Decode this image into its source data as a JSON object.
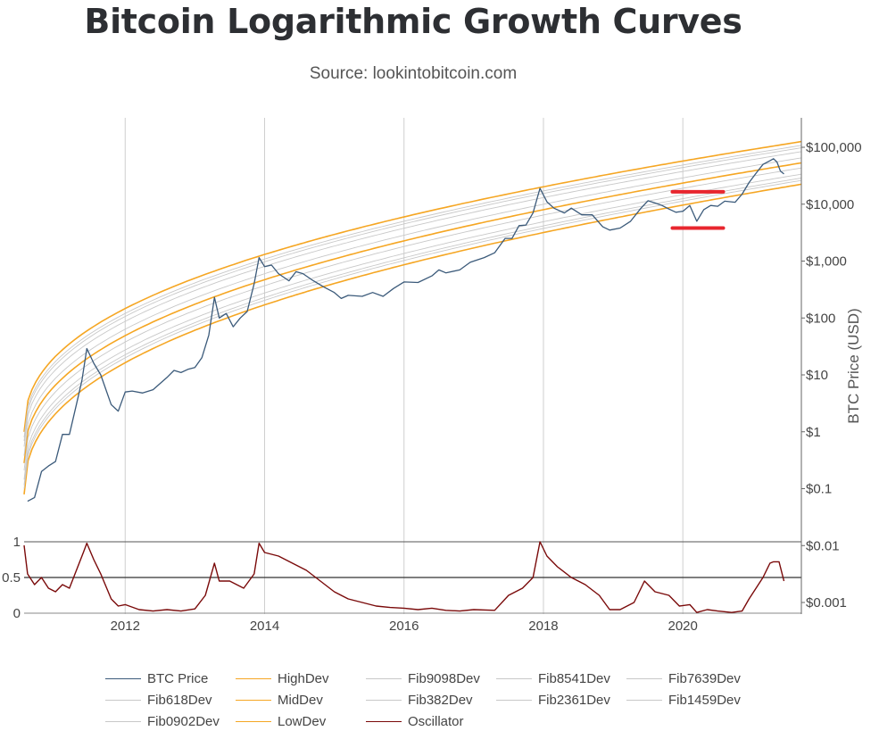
{
  "title": "Bitcoin Logarithmic Growth Curves",
  "subtitle": "Source: lookintobitcoin.com",
  "colors": {
    "btc": "#3b5a7a",
    "band": "#f5a623",
    "fib": "#c8c8c8",
    "oscillator": "#7a0a0a",
    "highlight": "#e8262e",
    "grid": "#cfcfcf"
  },
  "chart_data": {
    "type": "line",
    "title": "Bitcoin Logarithmic Growth Curves",
    "ylabel": "BTC Price (USD)",
    "yscale": "log",
    "ylim": [
      0.001,
      200000
    ],
    "xlim": [
      2010.55,
      2021.7
    ],
    "x_ticks": [
      {
        "value": 2012,
        "label": "2012"
      },
      {
        "value": 2014,
        "label": "2014"
      },
      {
        "value": 2016,
        "label": "2016"
      },
      {
        "value": 2018,
        "label": "2018"
      },
      {
        "value": 2020,
        "label": "2020"
      }
    ],
    "y_ticks": [
      {
        "value": 100000,
        "label": "$100,000"
      },
      {
        "value": 10000,
        "label": "$10,000"
      },
      {
        "value": 1000,
        "label": "$1,000"
      },
      {
        "value": 100,
        "label": "$100"
      },
      {
        "value": 10,
        "label": "$10"
      },
      {
        "value": 1,
        "label": "$1"
      },
      {
        "value": 0.1,
        "label": "$0.1"
      },
      {
        "value": 0.01,
        "label": "$0.01"
      },
      {
        "value": 0.001,
        "label": "$0.001"
      }
    ],
    "osc_ticks": [
      {
        "value": 1,
        "label": "1"
      },
      {
        "value": 0.5,
        "label": "0.5"
      },
      {
        "value": 0,
        "label": "0"
      }
    ],
    "curves": {
      "log10_low_start": -1.1,
      "log10_low_end": 4.35,
      "log10_high_start": 0.0,
      "log10_high_end": 5.1,
      "shape_exponent": 0.42
    },
    "btc_series": [
      [
        2010.6,
        0.06
      ],
      [
        2010.7,
        0.07
      ],
      [
        2010.8,
        0.2
      ],
      [
        2010.9,
        0.25
      ],
      [
        2011.0,
        0.3
      ],
      [
        2011.1,
        0.9
      ],
      [
        2011.2,
        0.9
      ],
      [
        2011.3,
        3
      ],
      [
        2011.38,
        8
      ],
      [
        2011.45,
        29
      ],
      [
        2011.55,
        16
      ],
      [
        2011.65,
        10
      ],
      [
        2011.8,
        3
      ],
      [
        2011.9,
        2.3
      ],
      [
        2012.0,
        5
      ],
      [
        2012.1,
        5.2
      ],
      [
        2012.25,
        4.8
      ],
      [
        2012.4,
        5.5
      ],
      [
        2012.6,
        9
      ],
      [
        2012.7,
        12
      ],
      [
        2012.8,
        11
      ],
      [
        2012.9,
        12.5
      ],
      [
        2013.0,
        13.5
      ],
      [
        2013.1,
        20
      ],
      [
        2013.2,
        50
      ],
      [
        2013.28,
        230
      ],
      [
        2013.35,
        100
      ],
      [
        2013.45,
        120
      ],
      [
        2013.55,
        70
      ],
      [
        2013.65,
        100
      ],
      [
        2013.75,
        130
      ],
      [
        2013.85,
        400
      ],
      [
        2013.92,
        1150
      ],
      [
        2014.0,
        800
      ],
      [
        2014.1,
        850
      ],
      [
        2014.2,
        600
      ],
      [
        2014.35,
        450
      ],
      [
        2014.45,
        650
      ],
      [
        2014.55,
        600
      ],
      [
        2014.7,
        450
      ],
      [
        2014.85,
        350
      ],
      [
        2015.0,
        280
      ],
      [
        2015.1,
        220
      ],
      [
        2015.2,
        250
      ],
      [
        2015.4,
        240
      ],
      [
        2015.55,
        280
      ],
      [
        2015.7,
        240
      ],
      [
        2015.85,
        330
      ],
      [
        2016.0,
        430
      ],
      [
        2016.2,
        420
      ],
      [
        2016.4,
        550
      ],
      [
        2016.5,
        700
      ],
      [
        2016.6,
        620
      ],
      [
        2016.8,
        700
      ],
      [
        2016.95,
        950
      ],
      [
        2017.0,
        1000
      ],
      [
        2017.15,
        1150
      ],
      [
        2017.3,
        1400
      ],
      [
        2017.45,
        2500
      ],
      [
        2017.55,
        2500
      ],
      [
        2017.65,
        4200
      ],
      [
        2017.75,
        4300
      ],
      [
        2017.85,
        7000
      ],
      [
        2017.95,
        19000
      ],
      [
        2018.05,
        11000
      ],
      [
        2018.15,
        8500
      ],
      [
        2018.3,
        7000
      ],
      [
        2018.4,
        8500
      ],
      [
        2018.55,
        6500
      ],
      [
        2018.7,
        6500
      ],
      [
        2018.85,
        4000
      ],
      [
        2018.95,
        3500
      ],
      [
        2019.1,
        3800
      ],
      [
        2019.25,
        5000
      ],
      [
        2019.4,
        8500
      ],
      [
        2019.5,
        11500
      ],
      [
        2019.6,
        10500
      ],
      [
        2019.7,
        9500
      ],
      [
        2019.8,
        8200
      ],
      [
        2019.9,
        7200
      ],
      [
        2020.0,
        7500
      ],
      [
        2020.1,
        9500
      ],
      [
        2020.2,
        5000
      ],
      [
        2020.3,
        8000
      ],
      [
        2020.4,
        9500
      ],
      [
        2020.5,
        9200
      ],
      [
        2020.6,
        11300
      ],
      [
        2020.75,
        10800
      ],
      [
        2020.85,
        15000
      ],
      [
        2020.95,
        24000
      ],
      [
        2021.05,
        35000
      ],
      [
        2021.15,
        50000
      ],
      [
        2021.25,
        58000
      ],
      [
        2021.3,
        63000
      ],
      [
        2021.35,
        55000
      ],
      [
        2021.4,
        38000
      ],
      [
        2021.45,
        34000
      ]
    ],
    "oscillator_series": [
      [
        2010.55,
        0.95
      ],
      [
        2010.6,
        0.55
      ],
      [
        2010.7,
        0.4
      ],
      [
        2010.8,
        0.5
      ],
      [
        2010.9,
        0.35
      ],
      [
        2011.0,
        0.3
      ],
      [
        2011.1,
        0.4
      ],
      [
        2011.2,
        0.35
      ],
      [
        2011.3,
        0.6
      ],
      [
        2011.4,
        0.85
      ],
      [
        2011.45,
        0.98
      ],
      [
        2011.55,
        0.75
      ],
      [
        2011.65,
        0.55
      ],
      [
        2011.8,
        0.2
      ],
      [
        2011.9,
        0.1
      ],
      [
        2012.0,
        0.12
      ],
      [
        2012.2,
        0.05
      ],
      [
        2012.4,
        0.03
      ],
      [
        2012.6,
        0.05
      ],
      [
        2012.8,
        0.03
      ],
      [
        2013.0,
        0.06
      ],
      [
        2013.15,
        0.25
      ],
      [
        2013.28,
        0.7
      ],
      [
        2013.35,
        0.45
      ],
      [
        2013.5,
        0.45
      ],
      [
        2013.7,
        0.35
      ],
      [
        2013.85,
        0.55
      ],
      [
        2013.92,
        0.98
      ],
      [
        2014.0,
        0.85
      ],
      [
        2014.2,
        0.8
      ],
      [
        2014.4,
        0.7
      ],
      [
        2014.6,
        0.6
      ],
      [
        2014.8,
        0.45
      ],
      [
        2015.0,
        0.3
      ],
      [
        2015.2,
        0.2
      ],
      [
        2015.4,
        0.15
      ],
      [
        2015.6,
        0.1
      ],
      [
        2015.8,
        0.08
      ],
      [
        2016.0,
        0.07
      ],
      [
        2016.2,
        0.05
      ],
      [
        2016.4,
        0.07
      ],
      [
        2016.6,
        0.04
      ],
      [
        2016.8,
        0.03
      ],
      [
        2017.0,
        0.05
      ],
      [
        2017.3,
        0.04
      ],
      [
        2017.5,
        0.25
      ],
      [
        2017.7,
        0.35
      ],
      [
        2017.85,
        0.5
      ],
      [
        2017.95,
        1.0
      ],
      [
        2018.05,
        0.8
      ],
      [
        2018.2,
        0.65
      ],
      [
        2018.4,
        0.5
      ],
      [
        2018.6,
        0.4
      ],
      [
        2018.8,
        0.25
      ],
      [
        2018.95,
        0.05
      ],
      [
        2019.1,
        0.05
      ],
      [
        2019.3,
        0.15
      ],
      [
        2019.45,
        0.45
      ],
      [
        2019.6,
        0.3
      ],
      [
        2019.8,
        0.25
      ],
      [
        2019.95,
        0.1
      ],
      [
        2020.1,
        0.12
      ],
      [
        2020.2,
        0.01
      ],
      [
        2020.35,
        0.05
      ],
      [
        2020.5,
        0.03
      ],
      [
        2020.7,
        0.01
      ],
      [
        2020.85,
        0.03
      ],
      [
        2020.95,
        0.2
      ],
      [
        2021.05,
        0.35
      ],
      [
        2021.15,
        0.5
      ],
      [
        2021.25,
        0.7
      ],
      [
        2021.3,
        0.72
      ],
      [
        2021.38,
        0.72
      ],
      [
        2021.45,
        0.45
      ]
    ],
    "annotations": [
      {
        "type": "highlight-line",
        "x0": 2019.85,
        "x1": 2020.58,
        "y": 16500
      },
      {
        "type": "highlight-line",
        "x0": 2019.85,
        "x1": 2020.58,
        "y": 3800
      }
    ]
  },
  "legend": {
    "items": [
      {
        "label": "BTC Price",
        "color": "#3b5a7a"
      },
      {
        "label": "HighDev",
        "color": "#f5a623"
      },
      {
        "label": "Fib9098Dev",
        "color": "#c8c8c8"
      },
      {
        "label": "Fib8541Dev",
        "color": "#c8c8c8"
      },
      {
        "label": "Fib7639Dev",
        "color": "#c8c8c8"
      },
      {
        "label": "Fib618Dev",
        "color": "#c8c8c8"
      },
      {
        "label": "MidDev",
        "color": "#f5a623"
      },
      {
        "label": "Fib382Dev",
        "color": "#c8c8c8"
      },
      {
        "label": "Fib2361Dev",
        "color": "#c8c8c8"
      },
      {
        "label": "Fib1459Dev",
        "color": "#c8c8c8"
      },
      {
        "label": "Fib0902Dev",
        "color": "#c8c8c8"
      },
      {
        "label": "LowDev",
        "color": "#f5a623"
      },
      {
        "label": "Oscillator",
        "color": "#7a0a0a"
      }
    ]
  }
}
